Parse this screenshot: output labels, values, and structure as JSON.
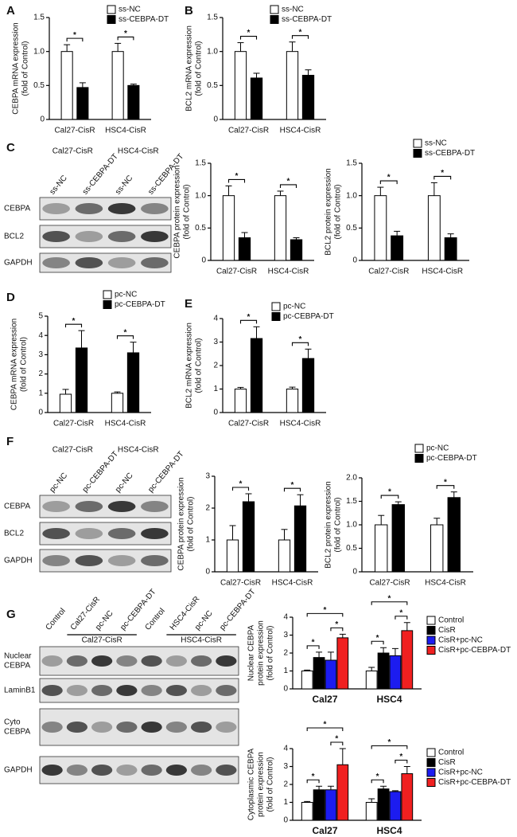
{
  "panels": [
    "A",
    "B",
    "C",
    "D",
    "E",
    "F",
    "G"
  ],
  "blots": [
    {
      "groups": [
        "Cal27-CisR",
        "HSC4-CisR"
      ],
      "lanes": [
        "ss-NC",
        "ss-CEBPA-DT",
        "ss-NC",
        "ss-CEBPA-DT"
      ],
      "rows": [
        [
          "CEBPA"
        ],
        [
          "BCL2"
        ],
        [
          "GAPDH"
        ]
      ]
    },
    {
      "groups": [
        "Cal27-CisR",
        "HSC4-CisR"
      ],
      "lanes": [
        "pc-NC",
        "pc-CEBPA-DT",
        "pc-NC",
        "pc-CEBPA-DT"
      ],
      "rows": [
        [
          "CEBPA"
        ],
        [
          "BCL2"
        ],
        [
          "GAPDH"
        ]
      ]
    },
    {
      "groups": [
        "Cal27-CisR",
        "HSC4-CisR"
      ],
      "lanes": [
        "Control",
        "Cal27-CisR",
        "pc-NC",
        "pc-CEBPA-DT",
        "Control",
        "HSC4-CisR",
        "pc-NC",
        "pc-CEBPA-DT"
      ],
      "rows": [
        [
          "Nuclear",
          "CEBPA"
        ],
        [
          "LaminB1"
        ],
        [
          "Cyto",
          "CEBPA"
        ],
        [
          "GAPDH"
        ]
      ]
    }
  ],
  "chart_data": [
    {
      "type": "bar",
      "ylabel": [
        "CEBPA mRNA expression",
        "(fold of Control)"
      ],
      "categories": [
        "Cal27-CisR",
        "HSC4-CisR"
      ],
      "series": [
        {
          "name": "ss-NC",
          "color": "#ffffff",
          "values": [
            1,
            1
          ],
          "errors": [
            0.1,
            0.12
          ]
        },
        {
          "name": "ss-CEBPA-DT",
          "color": "#000000",
          "values": [
            0.47,
            0.5
          ],
          "errors": [
            0.07,
            0.02
          ]
        }
      ],
      "annotations": [
        [
          "*"
        ],
        [
          "*"
        ]
      ],
      "ylim": [
        0,
        1.5
      ],
      "yticks": [
        0,
        0.5,
        {
          "value": 1,
          "label": "1.0"
        },
        1.5
      ]
    },
    {
      "type": "bar",
      "ylabel": [
        "BCL2 mRNA expression",
        "(fold of Control)"
      ],
      "categories": [
        "Cal27-CisR",
        "HSC4-CisR"
      ],
      "series": [
        {
          "name": "ss-NC",
          "color": "#ffffff",
          "values": [
            1,
            1
          ],
          "errors": [
            0.13,
            0.14
          ]
        },
        {
          "name": "ss-CEBPA-DT",
          "color": "#000000",
          "values": [
            0.61,
            0.65
          ],
          "errors": [
            0.07,
            0.08
          ]
        }
      ],
      "annotations": [
        [
          "*"
        ],
        [
          "*"
        ]
      ],
      "ylim": [
        0,
        1.5
      ],
      "yticks": [
        0,
        0.5,
        {
          "value": 1,
          "label": "1.0"
        },
        1.5
      ]
    },
    {
      "type": "bar",
      "ylabel": [
        "CEBPA protein expression",
        "(fold of Control)"
      ],
      "categories": [
        "Cal27-CisR",
        "HSC4-CisR"
      ],
      "series": [
        {
          "color": "#ffffff",
          "values": [
            1,
            1
          ],
          "errors": [
            0.15,
            0.07
          ]
        },
        {
          "color": "#000000",
          "values": [
            0.35,
            0.32
          ],
          "errors": [
            0.08,
            0.03
          ]
        }
      ],
      "annotations": [
        [
          "*"
        ],
        [
          "*"
        ]
      ],
      "ylim": [
        0,
        1.5
      ],
      "yticks": [
        0,
        0.5,
        {
          "value": 1,
          "label": "1.0"
        },
        1.5
      ]
    },
    {
      "type": "bar",
      "ylabel": [
        "BCL2 protein expression",
        "(fold of Control)"
      ],
      "categories": [
        "Cal27-CisR",
        "HSC4-CisR"
      ],
      "series": [
        {
          "name": "ss-NC",
          "color": "#ffffff",
          "values": [
            1,
            1
          ],
          "errors": [
            0.13,
            0.2
          ]
        },
        {
          "name": "ss-CEBPA-DT",
          "color": "#000000",
          "values": [
            0.38,
            0.35
          ],
          "errors": [
            0.07,
            0.06
          ]
        }
      ],
      "annotations": [
        [
          "*"
        ],
        [
          "*"
        ]
      ],
      "ylim": [
        0,
        1.5
      ],
      "yticks": [
        0,
        0.5,
        {
          "value": 1,
          "label": "1.0"
        },
        1.5
      ]
    },
    {
      "type": "bar",
      "ylabel": [
        "CEBPA mRNA expression",
        "(fold of Control)"
      ],
      "categories": [
        "Cal27-CisR",
        "HSC4-CisR"
      ],
      "series": [
        {
          "name": "pc-NC",
          "color": "#ffffff",
          "values": [
            0.95,
            1
          ],
          "errors": [
            0.25,
            0.07
          ]
        },
        {
          "name": "pc-CEBPA-DT",
          "color": "#000000",
          "values": [
            3.35,
            3.1
          ],
          "errors": [
            0.9,
            0.55
          ]
        }
      ],
      "annotations": [
        [
          "*"
        ],
        [
          "*"
        ]
      ],
      "ylim": [
        0,
        5
      ],
      "yticks": [
        0,
        1,
        2,
        3,
        4,
        5
      ]
    },
    {
      "type": "bar",
      "ylabel": [
        "BCL2 mRNA expression",
        "(fold of Control)"
      ],
      "categories": [
        "Cal27-CisR",
        "HSC4-CisR"
      ],
      "series": [
        {
          "name": "pc-NC",
          "color": "#ffffff",
          "values": [
            1,
            1
          ],
          "errors": [
            0.07,
            0.08
          ]
        },
        {
          "name": "pc-CEBPA-DT",
          "color": "#000000",
          "values": [
            3.15,
            2.3
          ],
          "errors": [
            0.5,
            0.4
          ]
        }
      ],
      "annotations": [
        [
          "*"
        ],
        [
          "*"
        ]
      ],
      "ylim": [
        0,
        4
      ],
      "yticks": [
        0,
        1,
        2,
        3,
        4
      ]
    },
    {
      "type": "bar",
      "ylabel": [
        "CEBPA protein expression",
        "(fold of Control)"
      ],
      "categories": [
        "Cal27-CisR",
        "HSC4-CisR"
      ],
      "series": [
        {
          "color": "#ffffff",
          "values": [
            1,
            1
          ],
          "errors": [
            0.45,
            0.33
          ]
        },
        {
          "color": "#000000",
          "values": [
            2.2,
            2.07
          ],
          "errors": [
            0.25,
            0.35
          ]
        }
      ],
      "annotations": [
        [
          "*"
        ],
        [
          "*"
        ]
      ],
      "ylim": [
        0,
        3
      ],
      "yticks": [
        0,
        1,
        2,
        3
      ]
    },
    {
      "type": "bar",
      "ylabel": [
        "BCL2 protein expression",
        "(fold of Control)"
      ],
      "categories": [
        "Cal27-CisR",
        "HSC4-CisR"
      ],
      "series": [
        {
          "name": "pc-NC",
          "color": "#ffffff",
          "values": [
            1,
            1
          ],
          "errors": [
            0.2,
            0.14
          ]
        },
        {
          "name": "pc-CEBPA-DT",
          "color": "#000000",
          "values": [
            1.43,
            1.58
          ],
          "errors": [
            0.06,
            0.12
          ]
        }
      ],
      "annotations": [
        [
          "*"
        ],
        [
          "*"
        ]
      ],
      "ylim": [
        0,
        2
      ],
      "yticks": [
        0,
        0.5,
        {
          "value": 1,
          "label": "1.0"
        },
        1.5,
        {
          "value": 2,
          "label": "2.0"
        }
      ]
    },
    {
      "type": "bar",
      "ylabel": [
        "Nuclear CEBPA",
        "protein expression",
        "(fold of Control)"
      ],
      "categories": [
        "Cal27",
        "HSC4"
      ],
      "series": [
        {
          "name": "Control",
          "color": "#ffffff",
          "values": [
            1,
            1
          ],
          "errors": [
            0.05,
            0.2
          ]
        },
        {
          "name": "CisR",
          "color": "#000000",
          "values": [
            1.75,
            2.0
          ],
          "errors": [
            0.3,
            0.3
          ]
        },
        {
          "name": "CisR+pc-NC",
          "color": "#1c1cf0",
          "values": [
            1.6,
            1.85
          ],
          "errors": [
            0.45,
            0.4
          ]
        },
        {
          "name": "CisR+pc-CEBPA-DT",
          "color": "#f02020",
          "values": [
            2.85,
            3.25
          ],
          "errors": [
            0.2,
            0.45
          ]
        }
      ],
      "annotations": [
        [
          "*",
          "*",
          "*"
        ],
        [
          "*",
          "*",
          "*"
        ]
      ],
      "ylim": [
        0,
        4
      ],
      "yticks": [
        0,
        1,
        2,
        3,
        4
      ]
    },
    {
      "type": "bar",
      "ylabel": [
        "Cytoplasmic CEBPA",
        "protein expression",
        "(fold of Control)"
      ],
      "categories": [
        "Cal27",
        "HSC4"
      ],
      "series": [
        {
          "name": "Control",
          "color": "#ffffff",
          "values": [
            1,
            1
          ],
          "errors": [
            0.05,
            0.2
          ]
        },
        {
          "name": "CisR",
          "color": "#000000",
          "values": [
            1.7,
            1.75
          ],
          "errors": [
            0.2,
            0.15
          ]
        },
        {
          "name": "CisR+pc-NC",
          "color": "#1c1cf0",
          "values": [
            1.7,
            1.6
          ],
          "errors": [
            0.2,
            0.05
          ]
        },
        {
          "name": "CisR+pc-CEBPA-DT",
          "color": "#f02020",
          "values": [
            3.1,
            2.6
          ],
          "errors": [
            0.9,
            0.4
          ]
        }
      ],
      "annotations": [
        [
          "*",
          "*",
          "*"
        ],
        [
          "*",
          "*",
          "*"
        ]
      ],
      "ylim": [
        0,
        4
      ],
      "yticks": [
        0,
        1,
        2,
        3,
        4
      ]
    }
  ]
}
